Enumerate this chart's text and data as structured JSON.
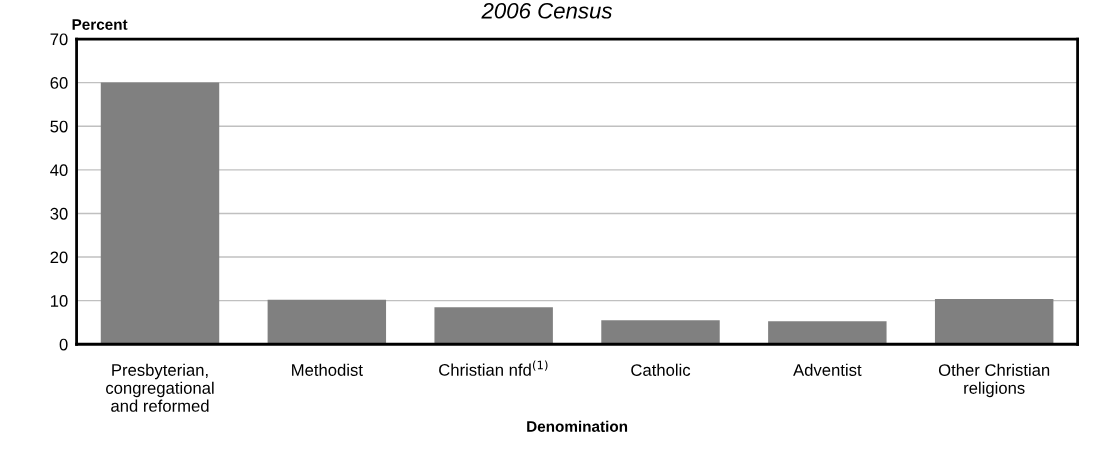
{
  "chart_data": {
    "type": "bar",
    "title": "2006 Census",
    "ylabel": "Percent",
    "xlabel": "Denomination",
    "categories": [
      "Presbyterian,\ncongregational\nand reformed",
      "Methodist",
      "Christian nfd$^{(1)}$",
      "Catholic",
      "Adventist",
      "Other Christian\nreligions"
    ],
    "values": [
      60,
      10.2,
      8.5,
      5.5,
      5.3,
      10.4
    ],
    "color": "#808080",
    "ylim": [
      0,
      70
    ],
    "yticks": [
      0,
      10,
      20,
      30,
      40,
      50,
      60,
      70
    ],
    "grid": "y",
    "legend": false
  }
}
